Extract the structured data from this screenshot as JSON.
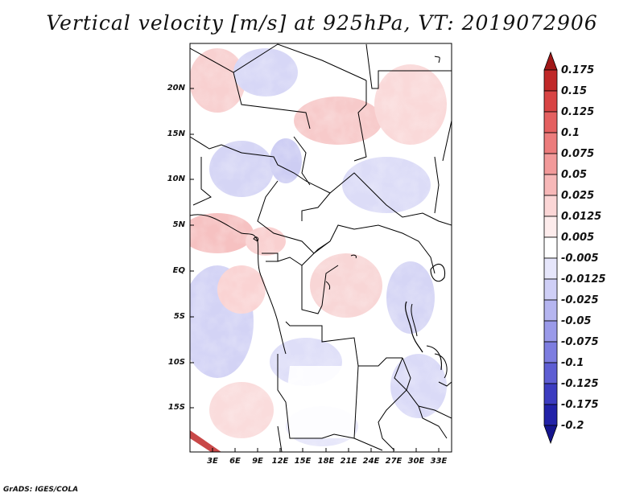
{
  "title": "Vertical velocity [m/s] at 925hPa, VT: 2019072906",
  "credit": "GrADS: IGES/COLA",
  "map": {
    "lat_labels": [
      "20N",
      "15N",
      "10N",
      "5N",
      "EQ",
      "5S",
      "10S",
      "15S"
    ],
    "lon_labels": [
      "3E",
      "6E",
      "9E",
      "12E",
      "15E",
      "18E",
      "21E",
      "24E",
      "27E",
      "30E",
      "33E"
    ],
    "lat_range": [
      -19.5,
      24.5
    ],
    "lon_range": [
      0,
      34.5
    ]
  },
  "colorbar": {
    "labels": [
      "0.175",
      "0.15",
      "0.125",
      "0.1",
      "0.075",
      "0.05",
      "0.025",
      "0.0125",
      "0.005",
      "-0.005",
      "-0.0125",
      "-0.025",
      "-0.05",
      "-0.075",
      "-0.1",
      "-0.125",
      "-0.175",
      "-0.2"
    ],
    "colors": [
      "#a01818",
      "#c02828",
      "#d84444",
      "#e46060",
      "#ec7c7c",
      "#f29a9a",
      "#f7b8b8",
      "#fbd6d6",
      "#fdecec",
      "#ffffff",
      "#e6e6fb",
      "#cfcff6",
      "#b5b5f0",
      "#9a9ae9",
      "#7d7de0",
      "#5e5ed3",
      "#3c3cc0",
      "#2222a8",
      "#15158e"
    ]
  }
}
